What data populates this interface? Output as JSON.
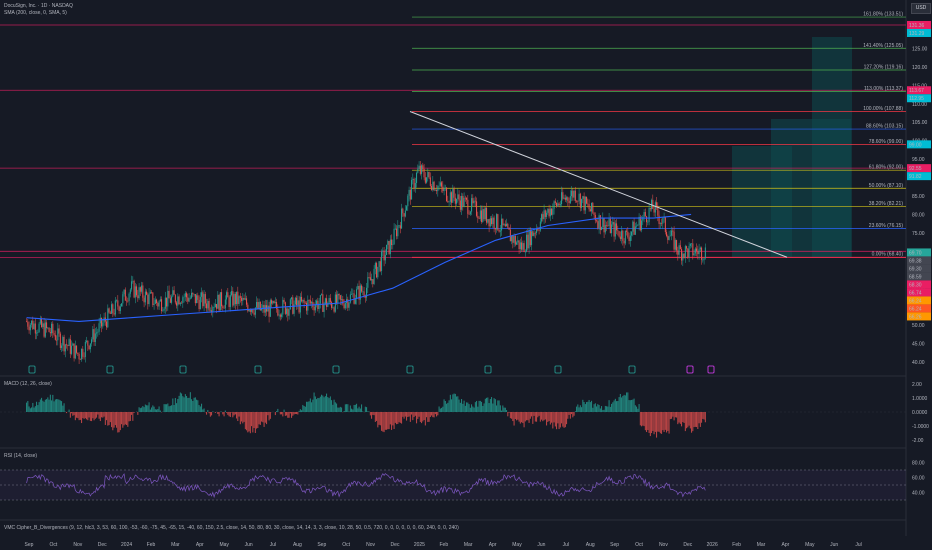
{
  "header": {
    "symbol_line": "DocuSign, Inc. · 1D · NASDAQ",
    "indicator_line": "SMA (200, close, 0, SMA, 5)",
    "currency": "USD"
  },
  "panes": {
    "macd_label": "MACD (12, 26, close)",
    "rsi_label": "RSI (14, close)",
    "vmc_label": "VMC Cipher_B_Divergences (9, 12, hlc3, 3, 53, 60, 100, -53, -60, -75, 45, -65, 15, -40, 60, 150, 2.5, close, 14, 50, 80, 80, 30, close, 14, 14, 3, 3, close, 10, 28, 50, 0.5, 720, 0, 0, 0, 0, 0, 0, 60, 240, 0, 0, 240)"
  },
  "colors": {
    "background": "#161a25",
    "candle_up": "#26a69a",
    "candle_down": "#ef5350",
    "sma": "#2962ff",
    "trendline": "#d1d4dc",
    "horizontal_level": "#e91e63",
    "fib_green": "#4caf50",
    "fib_yellow": "#d4c417",
    "fib_blue": "#2962ff",
    "fib_red": "#f23645",
    "rsi": "#7e57c2",
    "projection_box": "#0e4a4f"
  },
  "chart_data": [
    {
      "type": "candlestick",
      "title": "DocuSign, Inc. · 1D · NASDAQ",
      "x_ticks": [
        "Sep",
        "Oct",
        "Nov",
        "Dec",
        "2024",
        "Feb",
        "Mar",
        "Apr",
        "May",
        "Jun",
        "Jul",
        "Aug",
        "Sep",
        "Oct",
        "Nov",
        "Dec",
        "2025",
        "Feb",
        "Mar",
        "Apr",
        "May",
        "Jun",
        "Jul",
        "Aug",
        "Sep",
        "Oct",
        "Nov",
        "Dec",
        "2026",
        "Feb",
        "Mar",
        "Apr",
        "May",
        "Jun",
        "Jul"
      ],
      "y_ticks": [
        40,
        45,
        50,
        55,
        60,
        65,
        70,
        75,
        80,
        85,
        90,
        95,
        100,
        105,
        110,
        115,
        120,
        125,
        130
      ],
      "ylim": [
        38,
        133
      ],
      "close_series": {
        "dates": [
          "2023-09-01",
          "2023-10-01",
          "2023-11-01",
          "2023-12-01",
          "2024-01-01",
          "2024-02-01",
          "2024-03-01",
          "2024-04-01",
          "2024-05-01",
          "2024-06-01",
          "2024-07-01",
          "2024-08-01",
          "2024-09-01",
          "2024-10-01",
          "2024-11-01",
          "2024-12-01",
          "2025-01-01",
          "2025-02-01",
          "2025-03-01",
          "2025-04-01",
          "2025-05-01",
          "2025-06-01",
          "2025-07-01",
          "2025-08-01",
          "2025-09-01",
          "2025-10-01",
          "2025-11-01"
        ],
        "values": [
          51,
          48,
          42,
          51,
          60,
          56,
          58,
          56,
          57,
          54,
          55,
          56,
          56,
          60,
          73,
          92,
          86,
          82,
          78,
          71,
          81,
          86,
          78,
          74,
          82,
          70,
          70
        ]
      },
      "sma_200": {
        "dates": [
          "2023-09-01",
          "2023-11-01",
          "2024-01-01",
          "2024-03-01",
          "2024-05-01",
          "2024-07-01",
          "2024-09-01",
          "2024-11-01",
          "2025-01-01",
          "2025-03-01",
          "2025-05-01",
          "2025-07-01",
          "2025-09-01",
          "2025-10-15"
        ],
        "values": [
          52,
          51,
          52,
          53,
          54,
          55,
          56,
          60,
          67,
          73,
          77,
          79,
          79,
          80
        ]
      },
      "fibonacci": [
        {
          "level": "0.00%",
          "price": 68.4
        },
        {
          "level": "23.60%",
          "price": 76.15
        },
        {
          "level": "38.20%",
          "price": 82.21
        },
        {
          "level": "50.00%",
          "price": 87.1
        },
        {
          "level": "61.80%",
          "price": 92.0
        },
        {
          "level": "78.60%",
          "price": 99.0
        },
        {
          "level": "88.60%",
          "price": 103.15
        },
        {
          "level": "100.00%",
          "price": 107.88
        },
        {
          "level": "113.00%",
          "price": 113.37
        },
        {
          "level": "127.20%",
          "price": 119.16
        },
        {
          "level": "141.40%",
          "price": 125.05
        },
        {
          "level": "161.80%",
          "price": 133.51
        }
      ],
      "horizontal_levels": [
        131.36,
        113.67,
        92.55,
        70.0,
        68.3
      ],
      "price_labels": [
        "131.36",
        "131.29",
        "113.67",
        "112.95",
        "99.00",
        "92.55",
        "91.82",
        "69.70",
        "69.38",
        "69.30",
        "68.59",
        "68.30",
        "66.74",
        "66.24",
        "66.24",
        "66.26"
      ],
      "last_price": 69.7
    },
    {
      "type": "bar",
      "title": "MACD (12, 26, close)",
      "y_ticks": [
        "2.00",
        "1.0000",
        "0.0000",
        "-1.0000",
        "-2.00"
      ],
      "ylim": [
        -2.2,
        2.2
      ]
    },
    {
      "type": "line",
      "title": "RSI (14, close)",
      "y_ticks": [
        "80.00",
        "60.00",
        "40.00"
      ],
      "ylim": [
        20,
        90
      ],
      "bands": [
        70,
        50,
        30
      ]
    }
  ]
}
